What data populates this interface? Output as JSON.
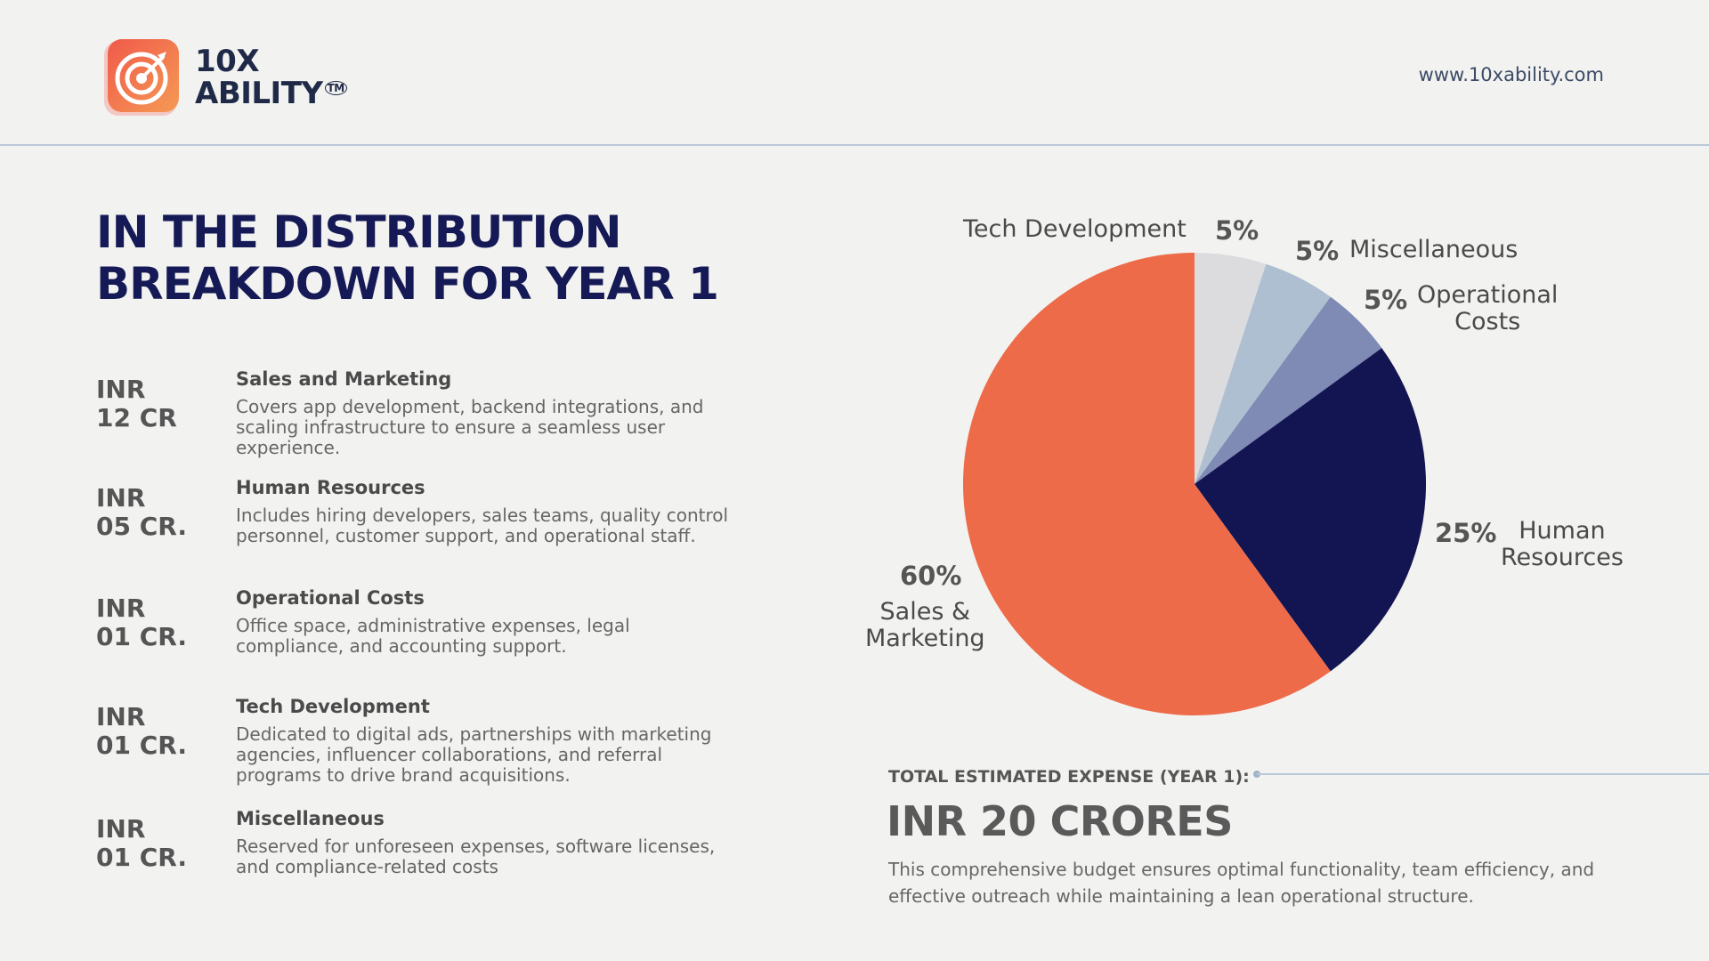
{
  "header": {
    "logo_line1": "10X",
    "logo_line2": "ABILITY",
    "logo_tm": "TM",
    "website": "www.10xability.com"
  },
  "title": {
    "line1": "IN THE DISTRIBUTION",
    "line2": "BREAKDOWN FOR YEAR 1"
  },
  "items": [
    {
      "amount_line1": "INR",
      "amount_line2": "12 CR",
      "name": "Sales and Marketing",
      "description": "Covers app development, backend integrations, and scaling infrastructure to ensure a seamless user experience."
    },
    {
      "amount_line1": "INR",
      "amount_line2": "05 CR.",
      "name": "Human Resources",
      "description": "Includes hiring developers, sales teams, quality control personnel, customer support, and operational staff."
    },
    {
      "amount_line1": "INR",
      "amount_line2": "01 CR.",
      "name": "Operational Costs",
      "description": "Office space, administrative expenses, legal compliance, and accounting support."
    },
    {
      "amount_line1": "INR",
      "amount_line2": "01 CR.",
      "name": "Tech Development",
      "description": "Dedicated to digital ads, partnerships with marketing agencies, influencer collaborations, and referral programs to drive brand acquisitions."
    },
    {
      "amount_line1": "INR",
      "amount_line2": "01 CR.",
      "name": "Miscellaneous",
      "description": "Reserved for unforeseen expenses, software licenses, and compliance-related costs"
    }
  ],
  "chart_data": {
    "type": "pie",
    "title": "",
    "slices": [
      {
        "label": "Tech Development",
        "value": 5,
        "pct_label": "5%",
        "color": "#dcdcdf"
      },
      {
        "label": "Miscellaneous",
        "value": 5,
        "pct_label": "5%",
        "color": "#adbfd0"
      },
      {
        "label": "Operational Costs",
        "value": 5,
        "pct_label": "5%",
        "color": "#7f8ab5"
      },
      {
        "label": "Human Resources",
        "value": 25,
        "pct_label": "25%",
        "color": "#131553"
      },
      {
        "label": "Sales & Marketing",
        "value": 60,
        "pct_label": "60%",
        "color": "#ed6b49"
      }
    ]
  },
  "chart_labels": {
    "tech": "Tech Development",
    "misc": "Miscellaneous",
    "ops_line1": "Operational",
    "ops_line2": "Costs",
    "hr_line1": "Human",
    "hr_line2": "Resources",
    "sales_line1": "Sales &",
    "sales_line2": "Marketing"
  },
  "total": {
    "label": "TOTAL ESTIMATED EXPENSE (YEAR 1):",
    "value": "INR 20 CRORES",
    "description": "This comprehensive budget ensures optimal functionality, team efficiency, and effective outreach while maintaining a lean operational structure."
  },
  "colors": {
    "title": "#151a56",
    "accent": "#ed6b49",
    "rule": "#b9c8d8"
  }
}
